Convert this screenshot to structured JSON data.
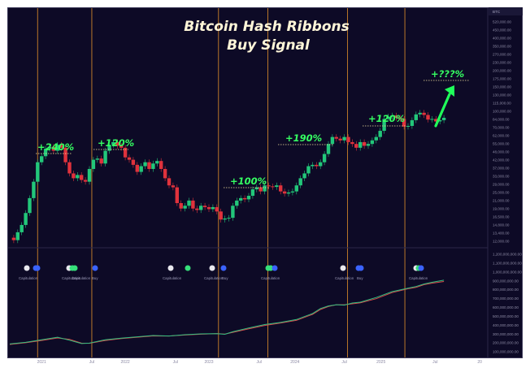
{
  "chart_data": {
    "type": "line",
    "title_line1": "Bitcoin Hash Ribbons",
    "title_line2": "Buy Signal",
    "currency_badge": "BTC",
    "colors": {
      "background": "#0d0a26",
      "up_candle": "#22c77a",
      "down_candle": "#e0323c",
      "signal_line": "#d88a2a",
      "label_green": "#35ff62",
      "hash_fast": "#2fbf80",
      "hash_slow": "#d94a4a",
      "dot_white": "#e8e8ee",
      "dot_green": "#36e07a",
      "dot_blue": "#3a63ff"
    },
    "price_axis": {
      "scale": "log",
      "ticks": [
        "616,000.00",
        "520,000.00",
        "450,000.00",
        "400,000.00",
        "350,000.00",
        "270,000.00",
        "230,000.00",
        "200,000.00",
        "175,000.00",
        "150,000.00",
        "130,000.00",
        "115,000.00",
        "100,000.00",
        "84,000.00",
        "70,000.00",
        "62,000.00",
        "55,000.00",
        "48,000.00",
        "42,000.00",
        "37,000.00",
        "33,000.00",
        "29,000.00",
        "25,000.00",
        "21,000.00",
        "19,000.00",
        "16,500.00",
        "14,800.00",
        "13,400.00",
        "12,000.00"
      ]
    },
    "hashrate_axis": {
      "ticks": [
        "1,200,000,000.00",
        "1,100,000,000.00",
        "1,000,000,000.00",
        "900,000,000.00",
        "800,000,000.00",
        "700,000,000.00",
        "600,000,000.00",
        "500,000,000.00",
        "400,000,000.00",
        "300,000,000.00",
        "200,000,000.00",
        "100,000,000.00"
      ]
    },
    "x_axis": {
      "ticks": [
        "2021",
        "Jul",
        "2022",
        "Jul",
        "2023",
        "Jul",
        "2024",
        "Jul",
        "2025",
        "Jul",
        "20"
      ]
    },
    "price_candles": [
      [
        0,
        12000
      ],
      [
        0.5,
        11500
      ],
      [
        1,
        13200
      ],
      [
        1.5,
        15000
      ],
      [
        2,
        18500
      ],
      [
        2.5,
        24000
      ],
      [
        3,
        32000
      ],
      [
        3.5,
        45000
      ],
      [
        4,
        50000
      ],
      [
        4.5,
        57000
      ],
      [
        5,
        59000
      ],
      [
        5.5,
        55000
      ],
      [
        6,
        61000
      ],
      [
        6.5,
        58000
      ],
      [
        7,
        45000
      ],
      [
        7.5,
        37000
      ],
      [
        8,
        34000
      ],
      [
        8.5,
        36000
      ],
      [
        9,
        33000
      ],
      [
        9.5,
        32000
      ],
      [
        10,
        40000
      ],
      [
        10.5,
        47000
      ],
      [
        11,
        48000
      ],
      [
        11.5,
        44000
      ],
      [
        12,
        55000
      ],
      [
        12.5,
        61000
      ],
      [
        13,
        64000
      ],
      [
        13.5,
        60000
      ],
      [
        14,
        58000
      ],
      [
        14.5,
        49000
      ],
      [
        15,
        47000
      ],
      [
        15.5,
        43000
      ],
      [
        16,
        38000
      ],
      [
        16.5,
        42000
      ],
      [
        17,
        45000
      ],
      [
        17.5,
        40000
      ],
      [
        18,
        44000
      ],
      [
        18.5,
        46000
      ],
      [
        19,
        40000
      ],
      [
        19.5,
        34000
      ],
      [
        20,
        30000
      ],
      [
        20.5,
        29000
      ],
      [
        21,
        22000
      ],
      [
        21.5,
        20000
      ],
      [
        22,
        21000
      ],
      [
        22.5,
        23000
      ],
      [
        23,
        20000
      ],
      [
        23.5,
        19500
      ],
      [
        24,
        21000
      ],
      [
        24.5,
        20500
      ],
      [
        25,
        19800
      ],
      [
        25.5,
        20500
      ],
      [
        26,
        19000
      ],
      [
        26.5,
        16500
      ],
      [
        27,
        16800
      ],
      [
        27.5,
        17000
      ],
      [
        28,
        21000
      ],
      [
        28.5,
        23000
      ],
      [
        29,
        24000
      ],
      [
        29.5,
        23500
      ],
      [
        30,
        25000
      ],
      [
        30.5,
        28000
      ],
      [
        31,
        29000
      ],
      [
        31.5,
        27000
      ],
      [
        32,
        30000
      ],
      [
        32.5,
        29500
      ],
      [
        33,
        29200
      ],
      [
        33.5,
        30000
      ],
      [
        34,
        27000
      ],
      [
        34.5,
        26000
      ],
      [
        35,
        26500
      ],
      [
        35.5,
        27000
      ],
      [
        36,
        30000
      ],
      [
        36.5,
        34000
      ],
      [
        37,
        37000
      ],
      [
        37.5,
        42000
      ],
      [
        38,
        43000
      ],
      [
        38.5,
        42000
      ],
      [
        39,
        45000
      ],
      [
        39.5,
        52000
      ],
      [
        40,
        62000
      ],
      [
        40.5,
        70000
      ],
      [
        41,
        68000
      ],
      [
        41.5,
        66000
      ],
      [
        42,
        70000
      ],
      [
        42.5,
        64000
      ],
      [
        43,
        62000
      ],
      [
        43.5,
        58000
      ],
      [
        44,
        64000
      ],
      [
        44.5,
        60000
      ],
      [
        45,
        62000
      ],
      [
        45.5,
        66000
      ],
      [
        46,
        70000
      ],
      [
        46.5,
        78000
      ],
      [
        47,
        96000
      ],
      [
        47.5,
        100000
      ],
      [
        48,
        102000
      ],
      [
        48.5,
        98000
      ],
      [
        49,
        96000
      ],
      [
        49.5,
        84000
      ],
      [
        50,
        85000
      ],
      [
        50.5,
        94000
      ],
      [
        51,
        104000
      ],
      [
        51.5,
        107000
      ],
      [
        52,
        103000
      ],
      [
        52.5,
        95000
      ],
      [
        53,
        96000
      ],
      [
        53.5,
        92000
      ],
      [
        54,
        94000
      ],
      [
        54.5,
        98000
      ]
    ],
    "hash_fast": [
      [
        0,
        140
      ],
      [
        2,
        160
      ],
      [
        4,
        190
      ],
      [
        6,
        220
      ],
      [
        7.5,
        185
      ],
      [
        9,
        145
      ],
      [
        10,
        150
      ],
      [
        12,
        190
      ],
      [
        14,
        210
      ],
      [
        16,
        225
      ],
      [
        18,
        240
      ],
      [
        20,
        235
      ],
      [
        22,
        250
      ],
      [
        24,
        260
      ],
      [
        26,
        262
      ],
      [
        27,
        255
      ],
      [
        28,
        285
      ],
      [
        30,
        330
      ],
      [
        32,
        370
      ],
      [
        34,
        395
      ],
      [
        36,
        430
      ],
      [
        38,
        500
      ],
      [
        39,
        560
      ],
      [
        40,
        590
      ],
      [
        41,
        605
      ],
      [
        42,
        600
      ],
      [
        43,
        625
      ],
      [
        44,
        635
      ],
      [
        46,
        690
      ],
      [
        48,
        760
      ],
      [
        50,
        800
      ],
      [
        51,
        820
      ],
      [
        52,
        850
      ],
      [
        53,
        870
      ],
      [
        54.5,
        895
      ]
    ],
    "hash_slow": [
      [
        0,
        135
      ],
      [
        2,
        155
      ],
      [
        4,
        182
      ],
      [
        6,
        212
      ],
      [
        7.5,
        195
      ],
      [
        9,
        150
      ],
      [
        10,
        148
      ],
      [
        12,
        182
      ],
      [
        14,
        204
      ],
      [
        16,
        220
      ],
      [
        18,
        236
      ],
      [
        20,
        235
      ],
      [
        22,
        246
      ],
      [
        24,
        256
      ],
      [
        26,
        263
      ],
      [
        27,
        258
      ],
      [
        28,
        278
      ],
      [
        30,
        320
      ],
      [
        32,
        360
      ],
      [
        34,
        388
      ],
      [
        36,
        420
      ],
      [
        38,
        490
      ],
      [
        39,
        548
      ],
      [
        40,
        584
      ],
      [
        41,
        605
      ],
      [
        42,
        605
      ],
      [
        43,
        615
      ],
      [
        44,
        628
      ],
      [
        46,
        676
      ],
      [
        48,
        748
      ],
      [
        50,
        794
      ],
      [
        51,
        810
      ],
      [
        52,
        842
      ],
      [
        53,
        860
      ],
      [
        54.5,
        880
      ]
    ],
    "signals": [
      {
        "x": 3.5,
        "pct_label": "+240%",
        "peak": 61000,
        "dot_x": 3.5,
        "dot_colors": [
          "white",
          "blue",
          "blue"
        ],
        "label": "Capitulation"
      },
      {
        "x": 10.3,
        "pct_label": "+120%",
        "peak": 64000,
        "dot_x": 8.2,
        "dot_colors": [
          "white",
          "green",
          "green",
          "blue"
        ],
        "label": "Capitulation",
        "label2": "Capitulation",
        "label3": "Buy"
      },
      {
        "x": 26.2,
        "pct_label": "+100%",
        "peak": 30000,
        "dot_x": 21,
        "dot_colors": [
          "white",
          "green"
        ],
        "label": "Capitulation"
      },
      {
        "x": 32.4,
        "pct_label": "+190%",
        "peak": 70000,
        "dot_x": 26.7,
        "dot_colors": [
          "white",
          "blue"
        ],
        "label": "Capitulation",
        "label2": "Buy"
      },
      {
        "x": 42.4,
        "pct_label": "+120%",
        "peak": 108000,
        "dot_x": 32.4,
        "dot_colors": [
          "green",
          "green",
          "blue"
        ],
        "label": "Capitulation"
      },
      {
        "x": 49.6,
        "pct_label": "+???%",
        "peak": 230000,
        "dot_x": 42.4,
        "dot_colors": [
          "white",
          "blue",
          "blue"
        ],
        "label": "Capitulation",
        "label2": "Buy"
      }
    ],
    "final_dots": {
      "x": 49.6,
      "dot_colors": [
        "white",
        "green",
        "blue"
      ],
      "label": "Capitulation"
    },
    "legend": "none",
    "grid": false
  }
}
